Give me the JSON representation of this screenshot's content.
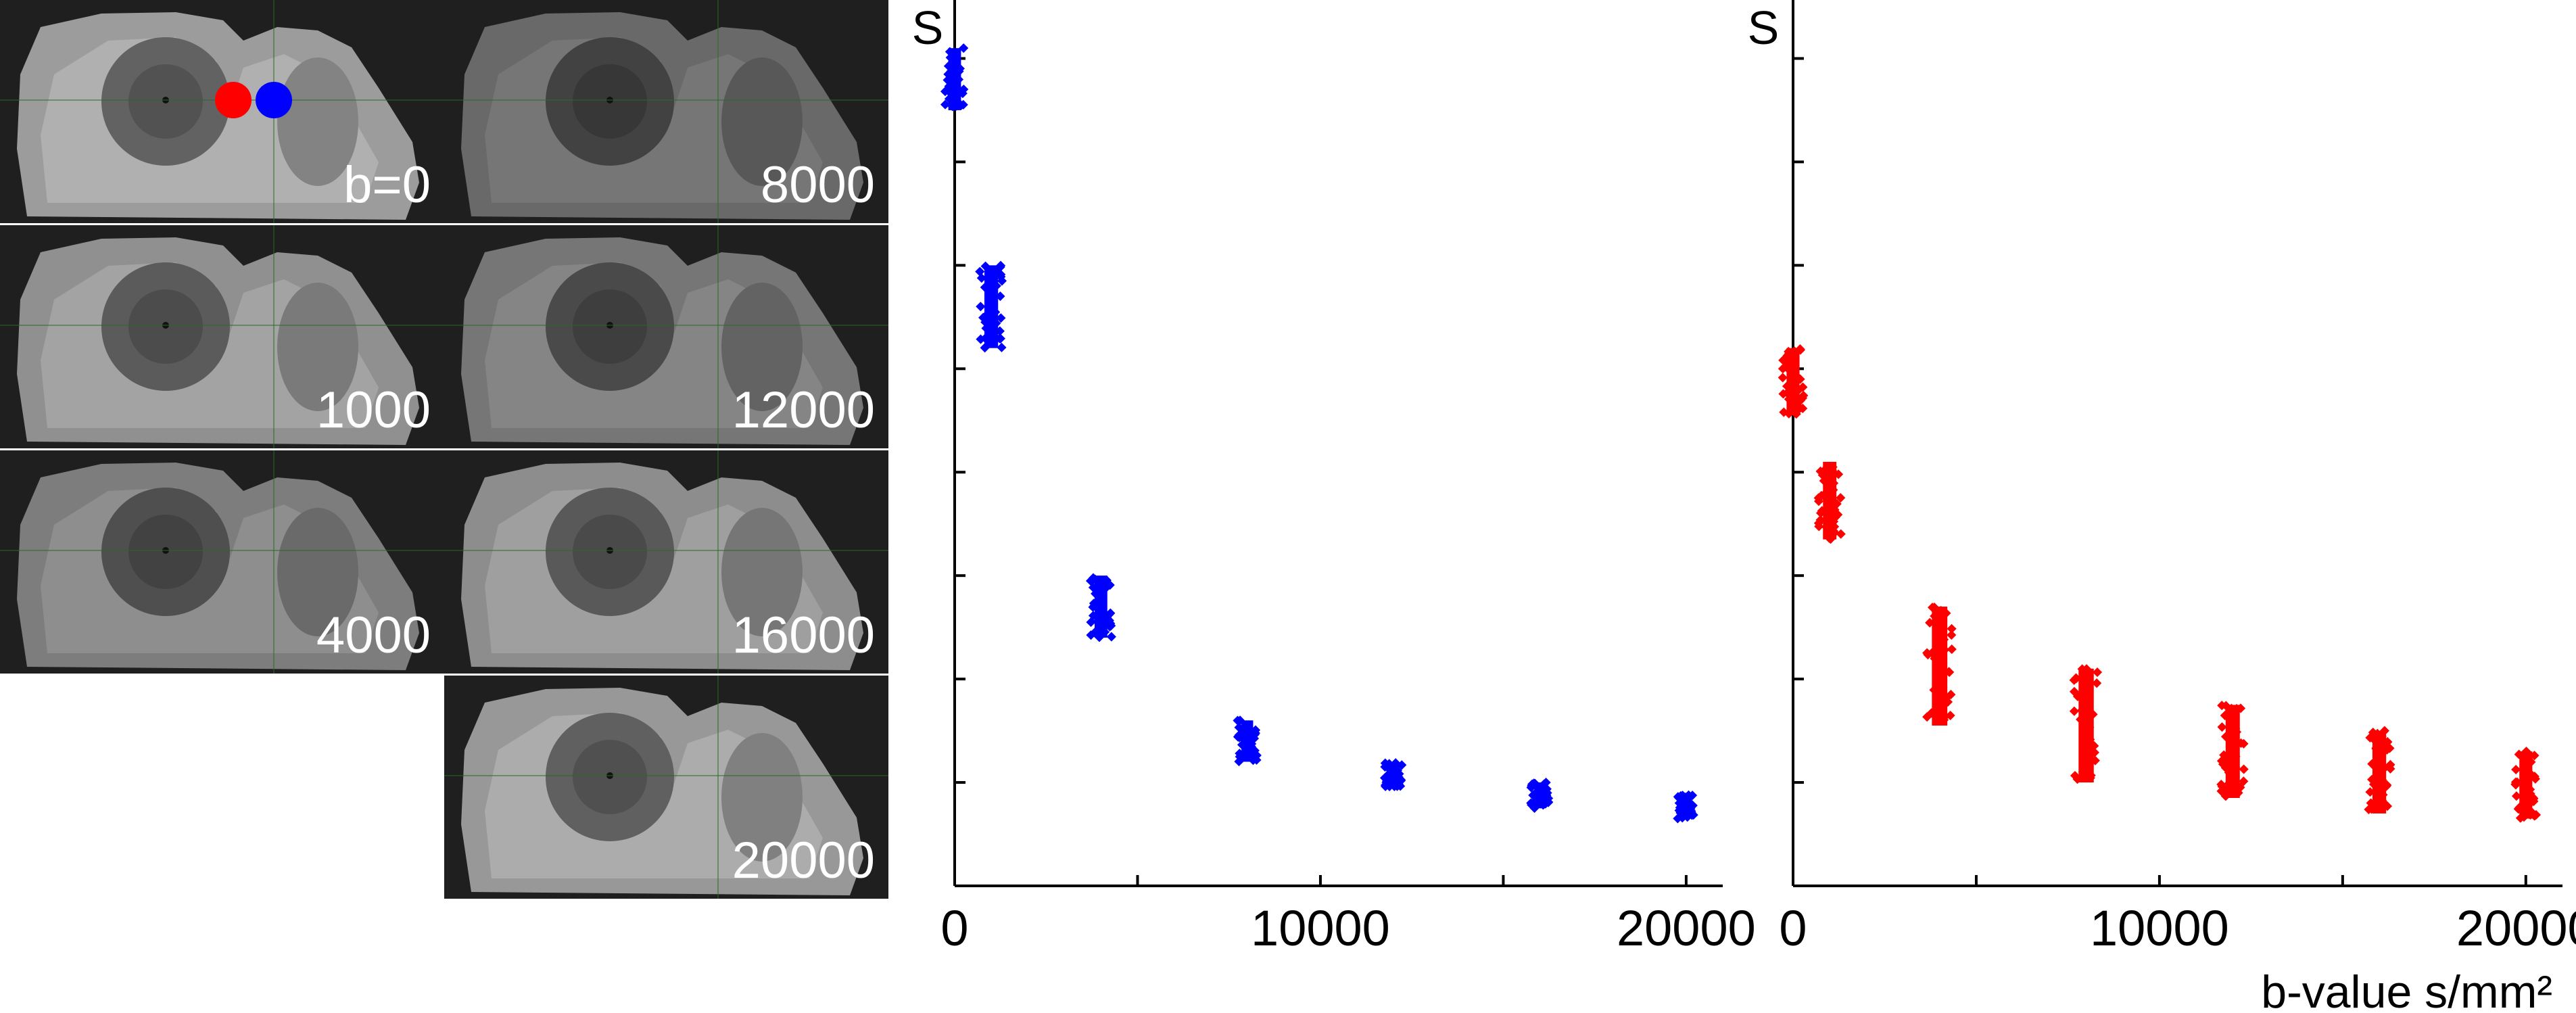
{
  "panels": [
    {
      "label": "b=0",
      "brightness": 0.82,
      "markers": true
    },
    {
      "label": "1000",
      "brightness": 0.76
    },
    {
      "label": "4000",
      "brightness": 0.66
    },
    {
      "label": "8000",
      "brightness": 0.55
    },
    {
      "label": "12000",
      "brightness": 0.62
    },
    {
      "label": "16000",
      "brightness": 0.74
    },
    {
      "label": "20000",
      "brightness": 0.8
    }
  ],
  "markers": [
    {
      "color": "#ff0000"
    },
    {
      "color": "#0000ff"
    }
  ],
  "chart_data": [
    {
      "type": "scatter",
      "color": "#0000ff",
      "ylabel": "S",
      "xlabel": "",
      "xlim": [
        0,
        21000
      ],
      "ylim": [
        0,
        8.5
      ],
      "xticks": [
        0,
        10000,
        20000
      ],
      "minor_xticks": [
        5000,
        15000
      ],
      "yticks": [
        1,
        2,
        3,
        4,
        5,
        6,
        7,
        8
      ],
      "points": [
        {
          "x": 0,
          "y_min": 7.5,
          "y_max": 8.1
        },
        {
          "x": 1000,
          "y_min": 5.2,
          "y_max": 6.0
        },
        {
          "x": 4000,
          "y_min": 2.4,
          "y_max": 3.0
        },
        {
          "x": 8000,
          "y_min": 1.2,
          "y_max": 1.6
        },
        {
          "x": 12000,
          "y_min": 0.95,
          "y_max": 1.2
        },
        {
          "x": 16000,
          "y_min": 0.75,
          "y_max": 1.0
        },
        {
          "x": 20000,
          "y_min": 0.65,
          "y_max": 0.9
        }
      ],
      "x_tick_labels": [
        "0",
        "10000",
        "20000"
      ]
    },
    {
      "type": "scatter",
      "color": "#ff0000",
      "ylabel": "S",
      "xlabel": "b-value s/mm²",
      "xlim": [
        0,
        21000
      ],
      "ylim": [
        0,
        8.5
      ],
      "xticks": [
        0,
        10000,
        20000
      ],
      "minor_xticks": [
        5000,
        15000
      ],
      "yticks": [
        1,
        2,
        3,
        4,
        5,
        6,
        7,
        8
      ],
      "points": [
        {
          "x": 0,
          "y_min": 4.55,
          "y_max": 5.2
        },
        {
          "x": 1000,
          "y_min": 3.35,
          "y_max": 4.1
        },
        {
          "x": 4000,
          "y_min": 1.55,
          "y_max": 2.7
        },
        {
          "x": 8000,
          "y_min": 1.0,
          "y_max": 2.1
        },
        {
          "x": 12000,
          "y_min": 0.85,
          "y_max": 1.75
        },
        {
          "x": 16000,
          "y_min": 0.7,
          "y_max": 1.5
        },
        {
          "x": 20000,
          "y_min": 0.65,
          "y_max": 1.3
        }
      ],
      "x_tick_labels": [
        "0",
        "10000",
        "20000"
      ]
    }
  ]
}
